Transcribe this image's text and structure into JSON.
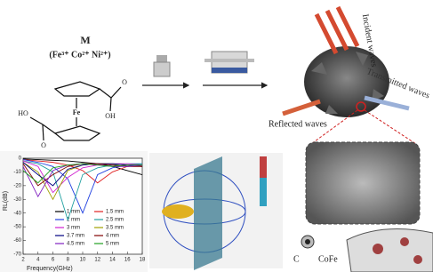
{
  "precursor": {
    "label": "M",
    "ions": "(Fe³⁺ Co²⁺ Ni²⁺)"
  },
  "ligand": {
    "center": "Fe",
    "left_group": "HO",
    "right_group": "OH",
    "oxygen": "O"
  },
  "waves": {
    "incident": "Incident waves",
    "transmitted": "Transmitted waves",
    "reflected": "Reflected waves"
  },
  "structure_legend": {
    "carbon": "C",
    "alloy": "CoFe"
  },
  "rl_plot": {
    "type": "line",
    "x_label": "Frequency(GHz)",
    "y_label": "RL(dB)",
    "x": [
      2,
      4,
      6,
      8,
      10,
      12,
      14,
      16,
      18
    ],
    "xlim": [
      2,
      18
    ],
    "xticks": [
      2,
      4,
      6,
      8,
      10,
      12,
      14,
      16,
      18
    ],
    "ylim": [
      -70,
      0
    ],
    "yticks": [
      0,
      -10,
      -20,
      -30,
      -40,
      -50,
      -60,
      -70
    ],
    "series": [
      {
        "name": "1 mm",
        "color": "#000000",
        "values": [
          -0.5,
          -1,
          -1.5,
          -2,
          -3,
          -4,
          -6,
          -9,
          -12
        ]
      },
      {
        "name": "1.5 mm",
        "color": "#e02020",
        "values": [
          -1,
          -2,
          -3,
          -5,
          -9,
          -18,
          -10,
          -6,
          -5
        ]
      },
      {
        "name": "2 mm",
        "color": "#2040e0",
        "values": [
          -1,
          -3,
          -6,
          -15,
          -40,
          -12,
          -7,
          -5,
          -4
        ]
      },
      {
        "name": "2.5 mm",
        "color": "#20a0a0",
        "values": [
          -2,
          -4,
          -10,
          -45,
          -12,
          -7,
          -5,
          -4,
          -4
        ]
      },
      {
        "name": "3 mm",
        "color": "#d020d0",
        "values": [
          -2,
          -6,
          -25,
          -14,
          -7,
          -5,
          -4,
          -4,
          -5
        ]
      },
      {
        "name": "3.5 mm",
        "color": "#a0a000",
        "values": [
          -3,
          -10,
          -30,
          -9,
          -5,
          -4,
          -4,
          -5,
          -6
        ]
      },
      {
        "name": "3.7 mm",
        "color": "#000080",
        "values": [
          -3,
          -12,
          -20,
          -8,
          -5,
          -4,
          -4,
          -5,
          -6
        ]
      },
      {
        "name": "4 mm",
        "color": "#800000",
        "values": [
          -4,
          -20,
          -12,
          -6,
          -4,
          -4,
          -5,
          -6,
          -6
        ]
      },
      {
        "name": "4.5 mm",
        "color": "#8020c0",
        "values": [
          -6,
          -28,
          -9,
          -5,
          -4,
          -5,
          -6,
          -6,
          -5
        ]
      },
      {
        "name": "5 mm",
        "color": "#20a020",
        "values": [
          -9,
          -18,
          -7,
          -5,
          -4,
          -5,
          -6,
          -5,
          -5
        ]
      }
    ]
  }
}
